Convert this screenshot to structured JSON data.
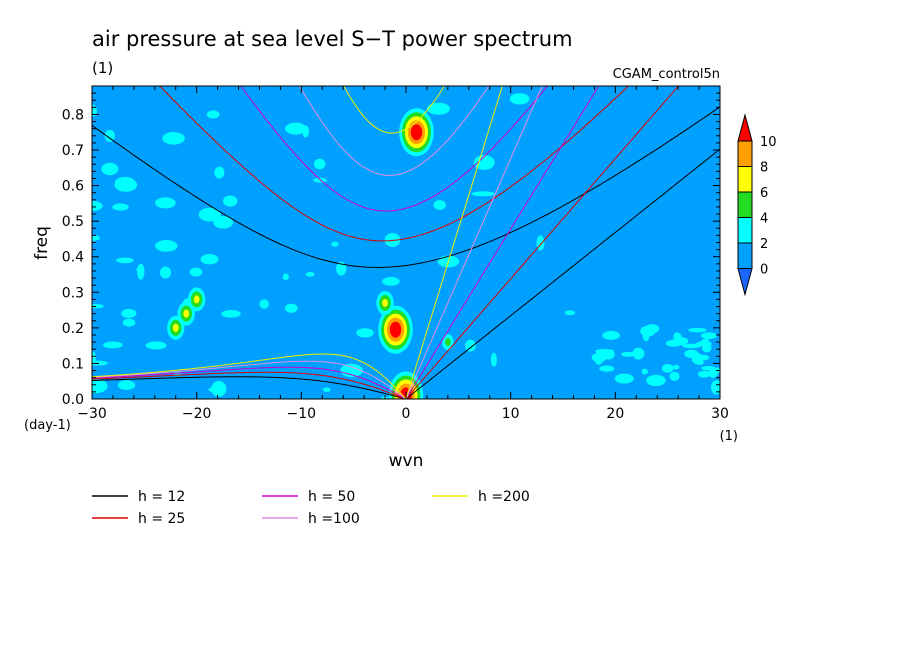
{
  "chart_data": {
    "type": "heatmap",
    "title": "air pressure at sea level S−T power spectrum",
    "subtitle": "(1)",
    "run_label": "CGAM_control5n",
    "xlabel": "wvn",
    "ylabel": "freq",
    "x_unit": "(1)",
    "y_unit": "(day-1)",
    "xlim": [
      -30,
      30
    ],
    "ylim": [
      0,
      0.88
    ],
    "x_ticks": [
      -30,
      -20,
      -10,
      0,
      10,
      20,
      30
    ],
    "x_tick_labels": [
      "−30",
      "−20",
      "−10",
      "0",
      "10",
      "20",
      "30"
    ],
    "y_ticks": [
      0,
      0.1,
      0.2,
      0.3,
      0.4,
      0.5,
      0.6,
      0.7,
      0.8
    ],
    "y_tick_labels": [
      "0.0",
      "0.1",
      "0.2",
      "0.3",
      "0.4",
      "0.5",
      "0.6",
      "0.7",
      "0.8"
    ],
    "colorbar": {
      "levels": [
        0,
        2,
        4,
        6,
        8,
        10
      ],
      "level_labels": [
        "0",
        "2",
        "4",
        "6",
        "8",
        "10"
      ],
      "colors": [
        "#1a66ff",
        "#00a0ff",
        "#00ffff",
        "#22dd22",
        "#ffff00",
        "#ffa000",
        "#ff0000"
      ]
    },
    "background_level_color": "#00a0ff",
    "field_features": [
      {
        "x": 1.0,
        "y": 0.75,
        "peak": 10
      },
      {
        "x": -1.0,
        "y": 0.195,
        "peak": 10
      },
      {
        "x": -2.0,
        "y": 0.27,
        "peak": 4
      },
      {
        "x": 0.0,
        "y": 0.01,
        "peak": 10
      },
      {
        "x": 4.0,
        "y": 0.16,
        "peak": 2
      },
      {
        "x": -20.0,
        "y": 0.28,
        "peak": 4
      },
      {
        "x": -22.0,
        "y": 0.2,
        "peak": 4
      },
      {
        "x": -21.0,
        "y": 0.24,
        "peak": 4
      }
    ],
    "dispersion_curves": [
      {
        "name": "h = 12",
        "label": "h = 12",
        "color": "#000000",
        "h": 12
      },
      {
        "name": "h = 25",
        "label": "h = 25",
        "color": "#dd0000",
        "h": 25
      },
      {
        "name": "h = 50",
        "label": "h = 50",
        "color": "#cc00cc",
        "h": 50
      },
      {
        "name": "h = 100",
        "label": "h =100",
        "color": "#e090e0",
        "h": 100
      },
      {
        "name": "h = 200",
        "label": "h =200",
        "color": "#eeee00",
        "h": 200
      }
    ],
    "legend_placement": "bottom"
  }
}
